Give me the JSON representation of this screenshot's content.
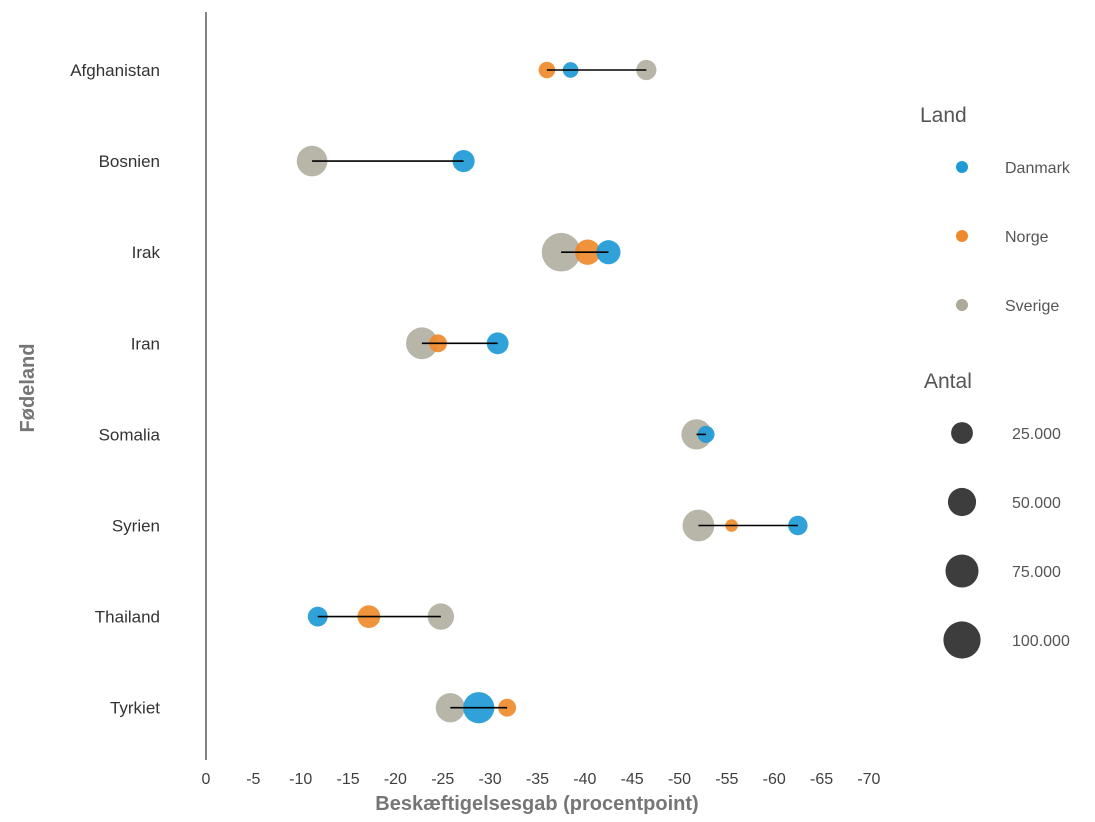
{
  "chart_data": {
    "type": "scatter",
    "title": "",
    "xlabel": "Beskæftigelsesgab (procentpoint)",
    "ylabel": "Fødeland",
    "xlim": [
      0,
      -70
    ],
    "x_ticks": [
      0,
      -5,
      -10,
      -15,
      -20,
      -25,
      -30,
      -35,
      -40,
      -45,
      -50,
      -55,
      -60,
      -65,
      -70
    ],
    "x_tick_labels": [
      "0",
      "-5",
      "-10",
      "-15",
      "-20",
      "-25",
      "-30",
      "-35",
      "-40",
      "-45",
      "-50",
      "-55",
      "-60",
      "-65",
      "-70"
    ],
    "categories": [
      "Afghanistan",
      "Bosnien",
      "Irak",
      "Iran",
      "Somalia",
      "Syrien",
      "Thailand",
      "Tyrkiet"
    ],
    "grid": false,
    "legend_position": "right",
    "colors": {
      "Danmark": "#1f9ad6",
      "Norge": "#ee8a2c",
      "Sverige": "#aca89a"
    },
    "series": [
      {
        "name": "Danmark",
        "values": [
          -38.5,
          -27.2,
          -42.5,
          -30.8,
          -52.8,
          -62.5,
          -11.8,
          -28.8
        ],
        "sizes": [
          9000,
          26000,
          33000,
          25000,
          12000,
          18000,
          19000,
          65000
        ]
      },
      {
        "name": "Norge",
        "values": [
          -36.0,
          null,
          -40.3,
          -24.5,
          null,
          -55.5,
          -17.2,
          -31.8
        ],
        "sizes": [
          11000,
          null,
          38000,
          14000,
          null,
          4000,
          28000,
          14000
        ]
      },
      {
        "name": "Sverige",
        "values": [
          -46.5,
          -11.2,
          -37.5,
          -22.8,
          -51.8,
          -52.0,
          -24.8,
          -25.8
        ],
        "sizes": [
          20000,
          62000,
          110000,
          68000,
          60000,
          68000,
          42000,
          55000
        ]
      }
    ],
    "ranges": [
      {
        "country": "Afghanistan",
        "from": -36.0,
        "to": -46.5
      },
      {
        "country": "Bosnien",
        "from": -11.2,
        "to": -27.2
      },
      {
        "country": "Irak",
        "from": -37.5,
        "to": -42.5
      },
      {
        "country": "Iran",
        "from": -22.8,
        "to": -30.8
      },
      {
        "country": "Somalia",
        "from": -51.8,
        "to": -52.8
      },
      {
        "country": "Syrien",
        "from": -52.0,
        "to": -62.5
      },
      {
        "country": "Thailand",
        "from": -11.8,
        "to": -24.8
      },
      {
        "country": "Tyrkiet",
        "from": -25.8,
        "to": -31.8
      }
    ],
    "legend": {
      "color_title": "Land",
      "color_entries": [
        "Danmark",
        "Norge",
        "Sverige"
      ],
      "size_title": "Antal",
      "size_entries": [
        {
          "label": "25.000",
          "value": 25000
        },
        {
          "label": "50.000",
          "value": 50000
        },
        {
          "label": "75.000",
          "value": 75000
        },
        {
          "label": "100.000",
          "value": 100000
        }
      ],
      "size_color": "#3d3d3d"
    }
  }
}
